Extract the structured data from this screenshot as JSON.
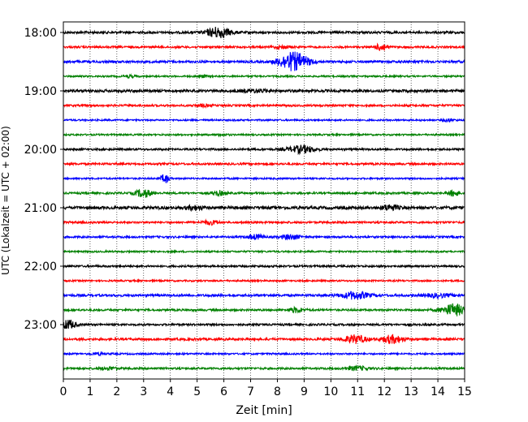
{
  "chart_data": {
    "type": "line",
    "title": "",
    "xlabel": "Zeit  [min]",
    "ylabel": "UTC (Lokalzeit = UTC + 02:00)",
    "xlim": [
      0,
      15
    ],
    "x_ticks": [
      0,
      1,
      2,
      3,
      4,
      5,
      6,
      7,
      8,
      9,
      10,
      11,
      12,
      13,
      14,
      15
    ],
    "x_tick_labels": [
      "0",
      "1",
      "2",
      "3",
      "4",
      "5",
      "6",
      "7",
      "8",
      "9",
      "10",
      "11",
      "12",
      "13",
      "14",
      "15"
    ],
    "y_tick_labels": [
      "18:00",
      "19:00",
      "20:00",
      "21:00",
      "22:00",
      "23:00"
    ],
    "y_tick_rows": [
      0,
      4,
      8,
      12,
      16,
      20
    ],
    "grid": "vertical dotted at each minute",
    "color_cycle": [
      "#000000",
      "#ff0000",
      "#0000ff",
      "#008000"
    ],
    "series": [
      {
        "start": "18:00",
        "color": "#000000",
        "noise": 0.35,
        "events": [
          {
            "t": 5.8,
            "amp": 1.6,
            "w": 0.45
          }
        ]
      },
      {
        "start": "18:15",
        "color": "#ff0000",
        "noise": 0.3,
        "events": [
          {
            "t": 11.9,
            "amp": 1.2,
            "w": 0.2
          },
          {
            "t": 8.2,
            "amp": 0.4,
            "w": 0.3
          }
        ]
      },
      {
        "start": "18:30",
        "color": "#0000ff",
        "noise": 0.35,
        "events": [
          {
            "t": 8.6,
            "amp": 2.8,
            "w": 0.55
          }
        ]
      },
      {
        "start": "18:45",
        "color": "#008000",
        "noise": 0.25,
        "events": [
          {
            "t": 2.5,
            "amp": 0.35,
            "w": 0.2
          },
          {
            "t": 5.2,
            "amp": 0.35,
            "w": 0.2
          }
        ]
      },
      {
        "start": "19:00",
        "color": "#000000",
        "noise": 0.4,
        "events": [
          {
            "t": 7.2,
            "amp": 0.4,
            "w": 0.5
          }
        ]
      },
      {
        "start": "19:15",
        "color": "#ff0000",
        "noise": 0.3,
        "events": [
          {
            "t": 5.2,
            "amp": 0.3,
            "w": 0.3
          }
        ]
      },
      {
        "start": "19:30",
        "color": "#0000ff",
        "noise": 0.25,
        "events": [
          {
            "t": 14.4,
            "amp": 0.4,
            "w": 0.2
          }
        ]
      },
      {
        "start": "19:45",
        "color": "#008000",
        "noise": 0.25,
        "events": [
          {
            "t": 5.9,
            "amp": 0.3,
            "w": 0.2
          }
        ]
      },
      {
        "start": "20:00",
        "color": "#000000",
        "noise": 0.3,
        "events": [
          {
            "t": 8.9,
            "amp": 1.1,
            "w": 0.5
          }
        ]
      },
      {
        "start": "20:15",
        "color": "#ff0000",
        "noise": 0.3,
        "events": []
      },
      {
        "start": "20:30",
        "color": "#0000ff",
        "noise": 0.25,
        "events": [
          {
            "t": 3.8,
            "amp": 1.3,
            "w": 0.15
          }
        ]
      },
      {
        "start": "20:45",
        "color": "#008000",
        "noise": 0.3,
        "events": [
          {
            "t": 3.0,
            "amp": 1.2,
            "w": 0.3
          },
          {
            "t": 5.8,
            "amp": 0.7,
            "w": 0.25
          },
          {
            "t": 14.6,
            "amp": 0.9,
            "w": 0.2
          }
        ]
      },
      {
        "start": "21:00",
        "color": "#000000",
        "noise": 0.45,
        "events": [
          {
            "t": 4.9,
            "amp": 0.6,
            "w": 0.3
          },
          {
            "t": 12.2,
            "amp": 0.8,
            "w": 0.3
          }
        ]
      },
      {
        "start": "21:15",
        "color": "#ff0000",
        "noise": 0.3,
        "events": [
          {
            "t": 5.5,
            "amp": 0.6,
            "w": 0.3
          }
        ]
      },
      {
        "start": "21:30",
        "color": "#0000ff",
        "noise": 0.3,
        "events": [
          {
            "t": 7.2,
            "amp": 0.7,
            "w": 0.3
          },
          {
            "t": 8.5,
            "amp": 0.7,
            "w": 0.35
          }
        ]
      },
      {
        "start": "21:45",
        "color": "#008000",
        "noise": 0.25,
        "events": []
      },
      {
        "start": "22:00",
        "color": "#000000",
        "noise": 0.3,
        "events": []
      },
      {
        "start": "22:15",
        "color": "#ff0000",
        "noise": 0.25,
        "events": []
      },
      {
        "start": "22:30",
        "color": "#0000ff",
        "noise": 0.35,
        "events": [
          {
            "t": 10.9,
            "amp": 1.1,
            "w": 0.5
          },
          {
            "t": 14.0,
            "amp": 0.5,
            "w": 0.5
          }
        ]
      },
      {
        "start": "22:45",
        "color": "#008000",
        "noise": 0.3,
        "events": [
          {
            "t": 8.7,
            "amp": 0.7,
            "w": 0.3
          },
          {
            "t": 14.6,
            "amp": 1.8,
            "w": 0.45
          }
        ]
      },
      {
        "start": "23:00",
        "color": "#000000",
        "noise": 0.3,
        "events": [
          {
            "t": 0.2,
            "amp": 1.4,
            "w": 0.25
          }
        ]
      },
      {
        "start": "23:15",
        "color": "#ff0000",
        "noise": 0.35,
        "events": [
          {
            "t": 10.9,
            "amp": 1.2,
            "w": 0.4
          },
          {
            "t": 12.3,
            "amp": 1.2,
            "w": 0.4
          }
        ]
      },
      {
        "start": "23:30",
        "color": "#0000ff",
        "noise": 0.25,
        "events": [
          {
            "t": 1.3,
            "amp": 0.3,
            "w": 0.3
          }
        ]
      },
      {
        "start": "23:45",
        "color": "#008000",
        "noise": 0.3,
        "events": [
          {
            "t": 1.7,
            "amp": 0.4,
            "w": 0.3
          },
          {
            "t": 11.0,
            "amp": 0.6,
            "w": 0.4
          }
        ]
      }
    ]
  }
}
